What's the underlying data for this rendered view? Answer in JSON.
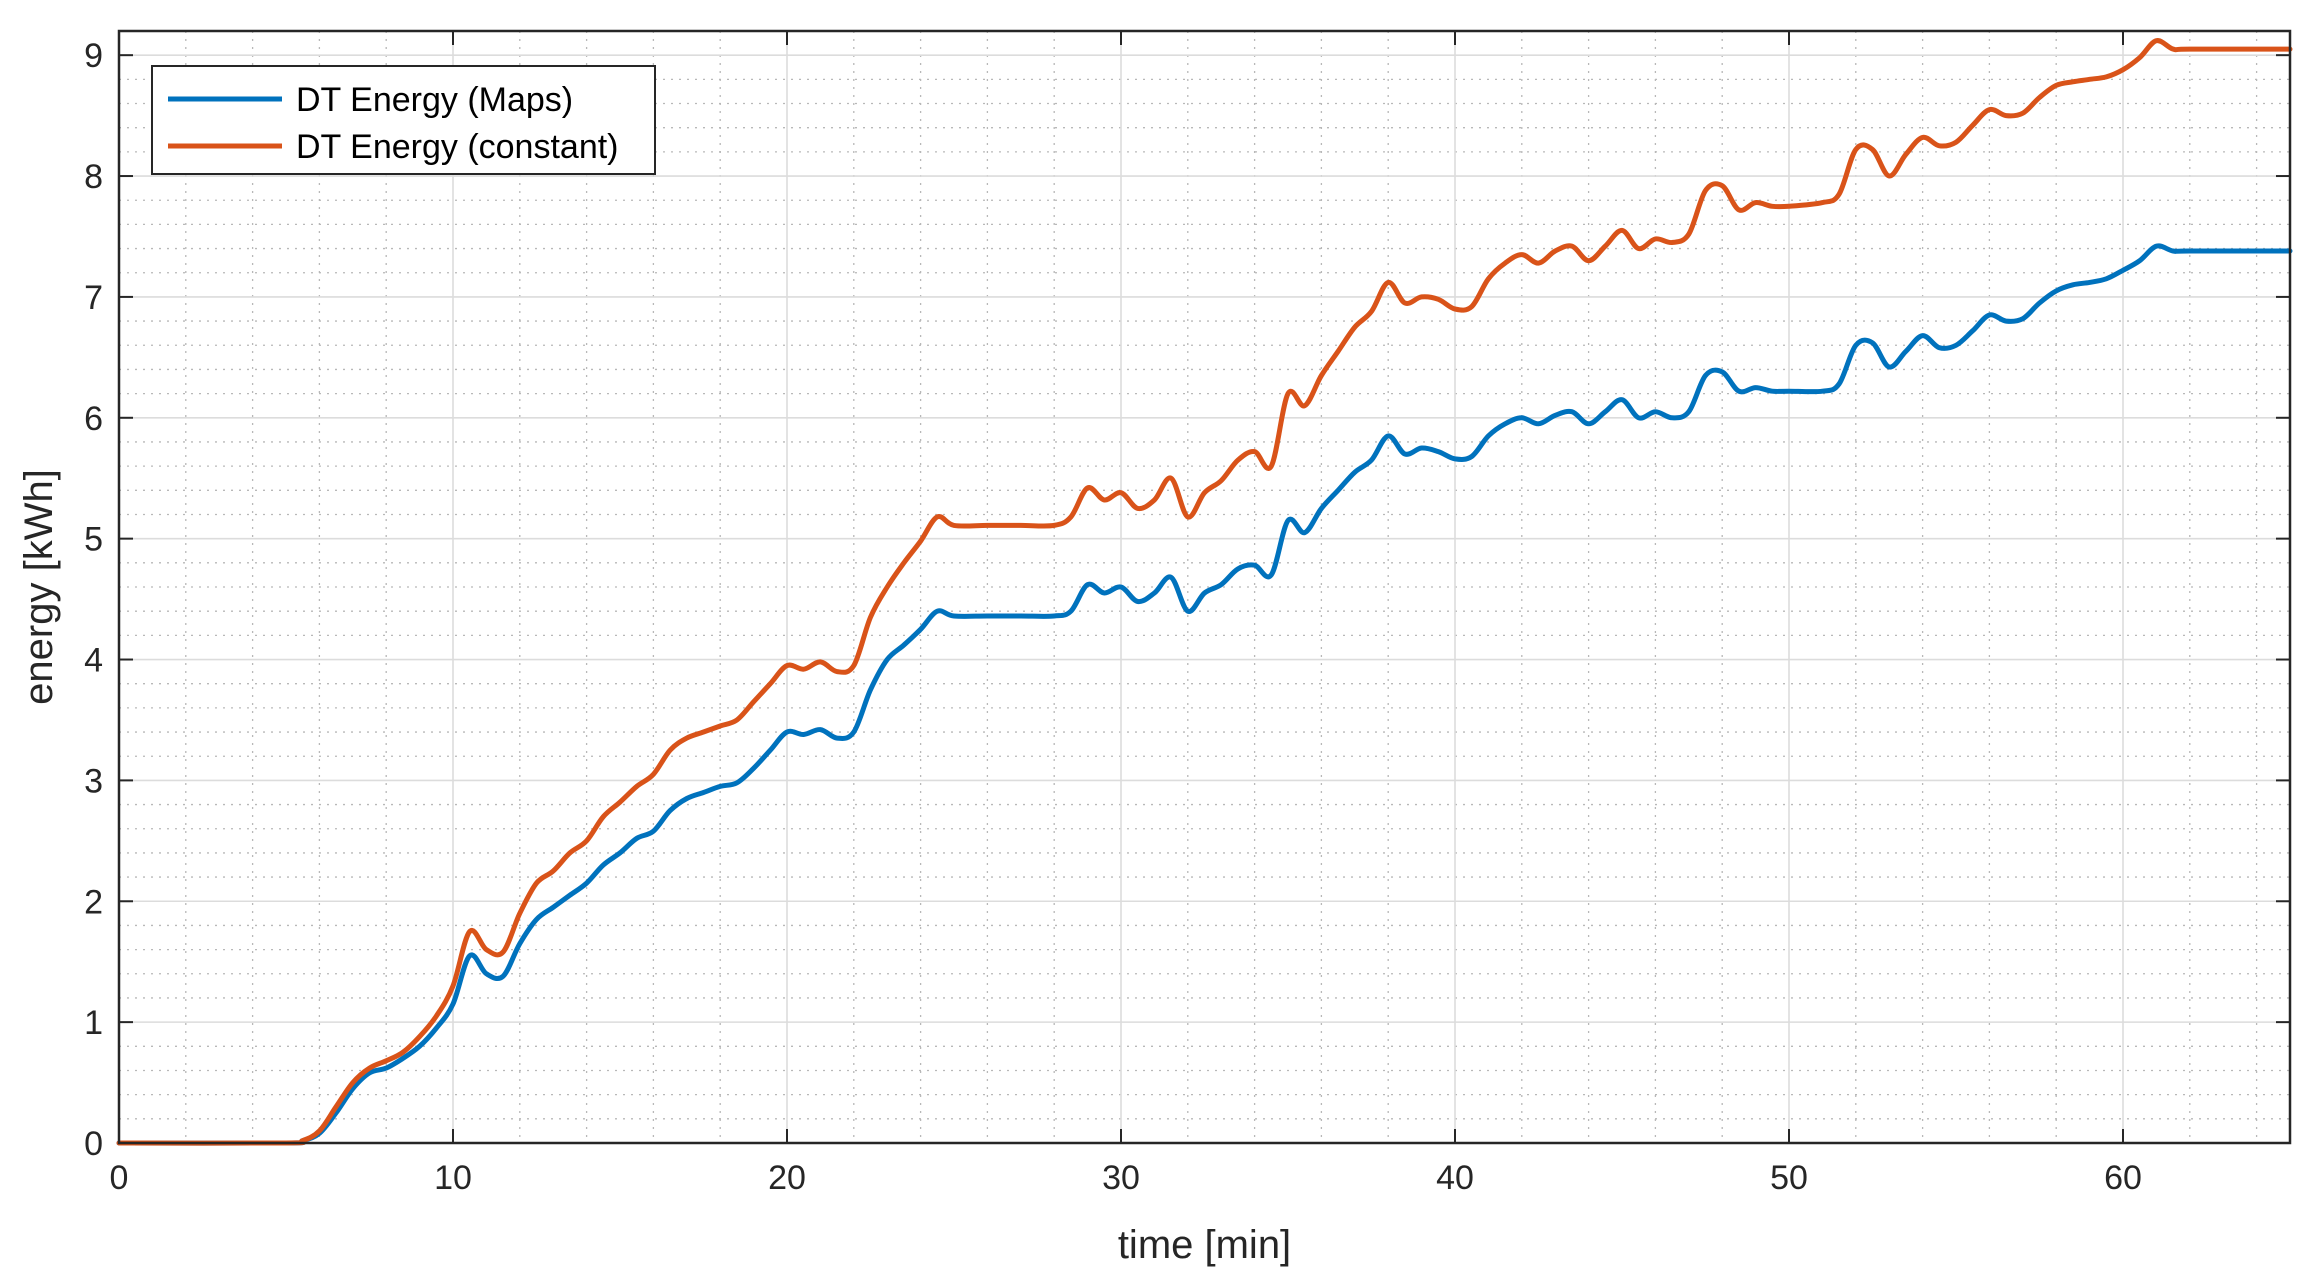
{
  "chart_data": {
    "type": "line",
    "xlabel": "time [min]",
    "ylabel": "energy [kWh]",
    "xlim": [
      0,
      65
    ],
    "ylim": [
      0,
      9.2
    ],
    "xticks": [
      0,
      10,
      20,
      30,
      40,
      50,
      60
    ],
    "yticks": [
      0,
      1,
      2,
      3,
      4,
      5,
      6,
      7,
      8,
      9
    ],
    "grid": true,
    "minor_grid": true,
    "legend_position": "top-left",
    "series": [
      {
        "name": "DT Energy (Maps)",
        "color": "#0072BD",
        "points": [
          [
            0,
            0
          ],
          [
            5.0,
            0
          ],
          [
            5.5,
            0.02
          ],
          [
            6.0,
            0.08
          ],
          [
            6.5,
            0.25
          ],
          [
            7.0,
            0.45
          ],
          [
            7.5,
            0.58
          ],
          [
            8.0,
            0.62
          ],
          [
            8.5,
            0.7
          ],
          [
            9.0,
            0.8
          ],
          [
            9.5,
            0.95
          ],
          [
            10.0,
            1.15
          ],
          [
            10.5,
            1.55
          ],
          [
            11.0,
            1.4
          ],
          [
            11.5,
            1.38
          ],
          [
            12.0,
            1.65
          ],
          [
            12.5,
            1.85
          ],
          [
            13.0,
            1.95
          ],
          [
            13.5,
            2.05
          ],
          [
            14.0,
            2.15
          ],
          [
            14.5,
            2.3
          ],
          [
            15.0,
            2.4
          ],
          [
            15.5,
            2.52
          ],
          [
            16.0,
            2.58
          ],
          [
            16.5,
            2.75
          ],
          [
            17.0,
            2.85
          ],
          [
            17.5,
            2.9
          ],
          [
            18.0,
            2.95
          ],
          [
            18.5,
            2.98
          ],
          [
            19.0,
            3.1
          ],
          [
            19.5,
            3.25
          ],
          [
            20.0,
            3.4
          ],
          [
            20.5,
            3.38
          ],
          [
            21.0,
            3.42
          ],
          [
            21.5,
            3.35
          ],
          [
            22.0,
            3.4
          ],
          [
            22.5,
            3.75
          ],
          [
            23.0,
            4.0
          ],
          [
            23.5,
            4.12
          ],
          [
            24.0,
            4.25
          ],
          [
            24.5,
            4.4
          ],
          [
            25.0,
            4.36
          ],
          [
            26.0,
            4.36
          ],
          [
            27.0,
            4.36
          ],
          [
            28.0,
            4.36
          ],
          [
            28.5,
            4.4
          ],
          [
            29.0,
            4.62
          ],
          [
            29.5,
            4.55
          ],
          [
            30.0,
            4.6
          ],
          [
            30.5,
            4.48
          ],
          [
            31.0,
            4.55
          ],
          [
            31.5,
            4.68
          ],
          [
            32.0,
            4.4
          ],
          [
            32.5,
            4.55
          ],
          [
            33.0,
            4.62
          ],
          [
            33.5,
            4.75
          ],
          [
            34.0,
            4.78
          ],
          [
            34.5,
            4.7
          ],
          [
            35.0,
            5.15
          ],
          [
            35.5,
            5.05
          ],
          [
            36.0,
            5.25
          ],
          [
            36.5,
            5.4
          ],
          [
            37.0,
            5.55
          ],
          [
            37.5,
            5.65
          ],
          [
            38.0,
            5.85
          ],
          [
            38.5,
            5.7
          ],
          [
            39.0,
            5.75
          ],
          [
            39.5,
            5.72
          ],
          [
            40.0,
            5.66
          ],
          [
            40.5,
            5.68
          ],
          [
            41.0,
            5.85
          ],
          [
            41.5,
            5.95
          ],
          [
            42.0,
            6.0
          ],
          [
            42.5,
            5.95
          ],
          [
            43.0,
            6.02
          ],
          [
            43.5,
            6.05
          ],
          [
            44.0,
            5.95
          ],
          [
            44.5,
            6.05
          ],
          [
            45.0,
            6.15
          ],
          [
            45.5,
            6.0
          ],
          [
            46.0,
            6.05
          ],
          [
            46.5,
            6.0
          ],
          [
            47.0,
            6.05
          ],
          [
            47.5,
            6.35
          ],
          [
            48.0,
            6.38
          ],
          [
            48.5,
            6.22
          ],
          [
            49.0,
            6.25
          ],
          [
            49.5,
            6.22
          ],
          [
            50.0,
            6.22
          ],
          [
            51.0,
            6.22
          ],
          [
            51.5,
            6.28
          ],
          [
            52.0,
            6.6
          ],
          [
            52.5,
            6.62
          ],
          [
            53.0,
            6.42
          ],
          [
            53.5,
            6.55
          ],
          [
            54.0,
            6.68
          ],
          [
            54.5,
            6.58
          ],
          [
            55.0,
            6.6
          ],
          [
            55.5,
            6.72
          ],
          [
            56.0,
            6.85
          ],
          [
            56.5,
            6.8
          ],
          [
            57.0,
            6.82
          ],
          [
            57.5,
            6.95
          ],
          [
            58.0,
            7.05
          ],
          [
            58.5,
            7.1
          ],
          [
            59.0,
            7.12
          ],
          [
            59.5,
            7.15
          ],
          [
            60.0,
            7.22
          ],
          [
            60.5,
            7.3
          ],
          [
            61.0,
            7.42
          ],
          [
            61.5,
            7.38
          ],
          [
            62.0,
            7.38
          ],
          [
            65.0,
            7.38
          ]
        ]
      },
      {
        "name": "DT Energy (constant)",
        "color": "#D95319",
        "points": [
          [
            0,
            0
          ],
          [
            5.0,
            0
          ],
          [
            5.5,
            0.02
          ],
          [
            6.0,
            0.1
          ],
          [
            6.5,
            0.3
          ],
          [
            7.0,
            0.5
          ],
          [
            7.5,
            0.62
          ],
          [
            8.0,
            0.68
          ],
          [
            8.5,
            0.75
          ],
          [
            9.0,
            0.88
          ],
          [
            9.5,
            1.05
          ],
          [
            10.0,
            1.3
          ],
          [
            10.5,
            1.75
          ],
          [
            11.0,
            1.6
          ],
          [
            11.5,
            1.58
          ],
          [
            12.0,
            1.9
          ],
          [
            12.5,
            2.15
          ],
          [
            13.0,
            2.25
          ],
          [
            13.5,
            2.4
          ],
          [
            14.0,
            2.5
          ],
          [
            14.5,
            2.7
          ],
          [
            15.0,
            2.82
          ],
          [
            15.5,
            2.95
          ],
          [
            16.0,
            3.05
          ],
          [
            16.5,
            3.25
          ],
          [
            17.0,
            3.35
          ],
          [
            17.5,
            3.4
          ],
          [
            18.0,
            3.45
          ],
          [
            18.5,
            3.5
          ],
          [
            19.0,
            3.65
          ],
          [
            19.5,
            3.8
          ],
          [
            20.0,
            3.95
          ],
          [
            20.5,
            3.92
          ],
          [
            21.0,
            3.98
          ],
          [
            21.5,
            3.9
          ],
          [
            22.0,
            3.95
          ],
          [
            22.5,
            4.35
          ],
          [
            23.0,
            4.6
          ],
          [
            23.5,
            4.8
          ],
          [
            24.0,
            4.98
          ],
          [
            24.5,
            5.18
          ],
          [
            25.0,
            5.11
          ],
          [
            26.0,
            5.11
          ],
          [
            27.0,
            5.11
          ],
          [
            28.0,
            5.11
          ],
          [
            28.5,
            5.18
          ],
          [
            29.0,
            5.42
          ],
          [
            29.5,
            5.32
          ],
          [
            30.0,
            5.38
          ],
          [
            30.5,
            5.25
          ],
          [
            31.0,
            5.32
          ],
          [
            31.5,
            5.5
          ],
          [
            32.0,
            5.18
          ],
          [
            32.5,
            5.38
          ],
          [
            33.0,
            5.48
          ],
          [
            33.5,
            5.65
          ],
          [
            34.0,
            5.72
          ],
          [
            34.5,
            5.6
          ],
          [
            35.0,
            6.2
          ],
          [
            35.5,
            6.1
          ],
          [
            36.0,
            6.35
          ],
          [
            36.5,
            6.55
          ],
          [
            37.0,
            6.75
          ],
          [
            37.5,
            6.88
          ],
          [
            38.0,
            7.12
          ],
          [
            38.5,
            6.95
          ],
          [
            39.0,
            7.0
          ],
          [
            39.5,
            6.98
          ],
          [
            40.0,
            6.9
          ],
          [
            40.5,
            6.92
          ],
          [
            41.0,
            7.15
          ],
          [
            41.5,
            7.28
          ],
          [
            42.0,
            7.35
          ],
          [
            42.5,
            7.28
          ],
          [
            43.0,
            7.38
          ],
          [
            43.5,
            7.42
          ],
          [
            44.0,
            7.3
          ],
          [
            44.5,
            7.42
          ],
          [
            45.0,
            7.55
          ],
          [
            45.5,
            7.4
          ],
          [
            46.0,
            7.48
          ],
          [
            46.5,
            7.45
          ],
          [
            47.0,
            7.52
          ],
          [
            47.5,
            7.88
          ],
          [
            48.0,
            7.92
          ],
          [
            48.5,
            7.72
          ],
          [
            49.0,
            7.78
          ],
          [
            49.5,
            7.75
          ],
          [
            50.0,
            7.75
          ],
          [
            51.0,
            7.78
          ],
          [
            51.5,
            7.85
          ],
          [
            52.0,
            8.22
          ],
          [
            52.5,
            8.22
          ],
          [
            53.0,
            8.0
          ],
          [
            53.5,
            8.18
          ],
          [
            54.0,
            8.32
          ],
          [
            54.5,
            8.25
          ],
          [
            55.0,
            8.28
          ],
          [
            55.5,
            8.42
          ],
          [
            56.0,
            8.55
          ],
          [
            56.5,
            8.5
          ],
          [
            57.0,
            8.52
          ],
          [
            57.5,
            8.65
          ],
          [
            58.0,
            8.75
          ],
          [
            58.5,
            8.78
          ],
          [
            59.0,
            8.8
          ],
          [
            59.5,
            8.82
          ],
          [
            60.0,
            8.88
          ],
          [
            60.5,
            8.98
          ],
          [
            61.0,
            9.12
          ],
          [
            61.5,
            9.05
          ],
          [
            62.0,
            9.05
          ],
          [
            65.0,
            9.05
          ]
        ]
      }
    ]
  }
}
